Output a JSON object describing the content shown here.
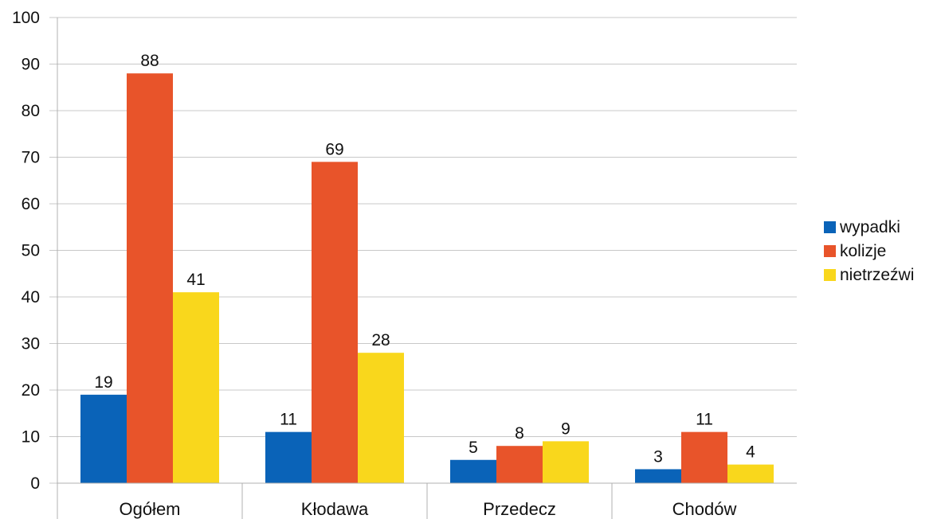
{
  "chart_data": {
    "type": "bar",
    "categories": [
      "Ogółem",
      "Kłodawa",
      "Przedecz",
      "Chodów"
    ],
    "series": [
      {
        "name": "wypadki",
        "values": [
          19,
          11,
          5,
          3
        ],
        "color": "#0a63b8"
      },
      {
        "name": "kolizje",
        "values": [
          88,
          69,
          8,
          11
        ],
        "color": "#e8542a"
      },
      {
        "name": "nietrzeźwi",
        "values": [
          41,
          28,
          9,
          4
        ],
        "color": "#f9d71c"
      }
    ],
    "ylim": [
      0,
      100
    ],
    "yticks": [
      0,
      10,
      20,
      30,
      40,
      50,
      60,
      70,
      80,
      90,
      100
    ],
    "grid": true,
    "legend_position": "right",
    "data_labels": true
  }
}
